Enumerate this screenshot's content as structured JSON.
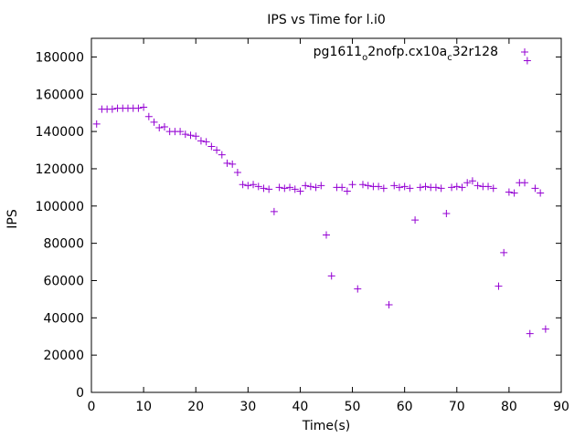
{
  "chart_data": {
    "type": "scatter",
    "title": "IPS vs Time for l.i0",
    "xlabel": "Time(s)",
    "ylabel": "IPS",
    "xlim": [
      0,
      90
    ],
    "ylim": [
      0,
      190000
    ],
    "xticks": [
      0,
      10,
      20,
      30,
      40,
      50,
      60,
      70,
      80,
      90
    ],
    "yticks": [
      0,
      20000,
      40000,
      60000,
      80000,
      100000,
      120000,
      140000,
      160000,
      180000
    ],
    "grid": false,
    "legend_position": "top-right",
    "legend": {
      "parts": [
        {
          "text": "pg1611",
          "sub": false
        },
        {
          "text": "o",
          "sub": true
        },
        {
          "text": "2nofp.cx10a",
          "sub": false
        },
        {
          "text": "c",
          "sub": true
        },
        {
          "text": "32r128",
          "sub": false
        }
      ]
    },
    "series": [
      {
        "marker": "plus",
        "color": "#9400d3",
        "points": [
          [
            1,
            144000
          ],
          [
            2,
            152000
          ],
          [
            3,
            152000
          ],
          [
            4,
            152000
          ],
          [
            5,
            152500
          ],
          [
            6,
            152500
          ],
          [
            7,
            152500
          ],
          [
            8,
            152500
          ],
          [
            9,
            152500
          ],
          [
            10,
            153000
          ],
          [
            11,
            148000
          ],
          [
            12,
            145000
          ],
          [
            13,
            142000
          ],
          [
            14,
            142500
          ],
          [
            15,
            140000
          ],
          [
            16,
            140000
          ],
          [
            17,
            140000
          ],
          [
            18,
            138500
          ],
          [
            19,
            138000
          ],
          [
            20,
            137500
          ],
          [
            21,
            135000
          ],
          [
            22,
            134500
          ],
          [
            23,
            132000
          ],
          [
            24,
            130000
          ],
          [
            25,
            127500
          ],
          [
            26,
            123000
          ],
          [
            27,
            122500
          ],
          [
            28,
            118000
          ],
          [
            29,
            111500
          ],
          [
            30,
            111000
          ],
          [
            31,
            111500
          ],
          [
            32,
            110500
          ],
          [
            33,
            109500
          ],
          [
            34,
            109000
          ],
          [
            35,
            97000
          ],
          [
            36,
            110000
          ],
          [
            37,
            109500
          ],
          [
            38,
            110000
          ],
          [
            39,
            109000
          ],
          [
            40,
            108000
          ],
          [
            41,
            111000
          ],
          [
            42,
            110500
          ],
          [
            43,
            110000
          ],
          [
            44,
            111000
          ],
          [
            45,
            84500
          ],
          [
            46,
            62500
          ],
          [
            47,
            110000
          ],
          [
            48,
            110000
          ],
          [
            49,
            108000
          ],
          [
            50,
            111500
          ],
          [
            51,
            55500
          ],
          [
            52,
            111500
          ],
          [
            53,
            111000
          ],
          [
            54,
            110500
          ],
          [
            55,
            110500
          ],
          [
            56,
            109500
          ],
          [
            57,
            47000
          ],
          [
            58,
            111000
          ],
          [
            59,
            110000
          ],
          [
            60,
            110500
          ],
          [
            61,
            109500
          ],
          [
            62,
            92500
          ],
          [
            63,
            110000
          ],
          [
            64,
            110500
          ],
          [
            65,
            110000
          ],
          [
            66,
            110000
          ],
          [
            67,
            109500
          ],
          [
            68,
            96000
          ],
          [
            69,
            110000
          ],
          [
            70,
            110500
          ],
          [
            71,
            110000
          ],
          [
            72,
            112500
          ],
          [
            73,
            113500
          ],
          [
            74,
            111000
          ],
          [
            75,
            110500
          ],
          [
            76,
            110500
          ],
          [
            77,
            109500
          ],
          [
            78,
            57000
          ],
          [
            79,
            75000
          ],
          [
            80,
            107500
          ],
          [
            81,
            107000
          ],
          [
            82,
            112500
          ],
          [
            83,
            112500
          ],
          [
            83.5,
            178000
          ],
          [
            84,
            31500
          ],
          [
            85,
            109500
          ],
          [
            86,
            107000
          ],
          [
            87,
            34000
          ]
        ]
      }
    ]
  }
}
